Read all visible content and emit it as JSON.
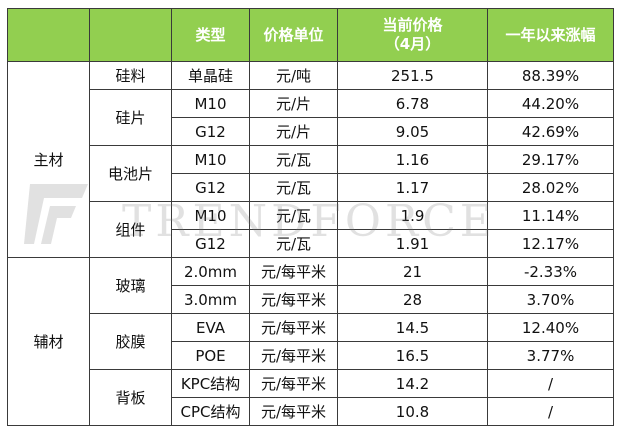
{
  "header": {
    "col_type": "类型",
    "col_unit": "价格单位",
    "col_price_line1": "当前价格",
    "col_price_line2": "（4月）",
    "col_change": "一年以来涨幅"
  },
  "groups": [
    {
      "name": "主材",
      "subgroups": [
        {
          "name": "硅料",
          "rows": [
            {
              "type": "单晶硅",
              "unit": "元/吨",
              "price": "251.5",
              "change": "88.39%"
            }
          ]
        },
        {
          "name": "硅片",
          "rows": [
            {
              "type": "M10",
              "unit": "元/片",
              "price": "6.78",
              "change": "44.20%"
            },
            {
              "type": "G12",
              "unit": "元/片",
              "price": "9.05",
              "change": "42.69%"
            }
          ]
        },
        {
          "name": "电池片",
          "rows": [
            {
              "type": "M10",
              "unit": "元/瓦",
              "price": "1.16",
              "change": "29.17%"
            },
            {
              "type": "G12",
              "unit": "元/瓦",
              "price": "1.17",
              "change": "28.02%"
            }
          ]
        },
        {
          "name": "组件",
          "rows": [
            {
              "type": "M10",
              "unit": "元/瓦",
              "price": "1.9",
              "change": "11.14%"
            },
            {
              "type": "G12",
              "unit": "元/瓦",
              "price": "1.91",
              "change": "12.17%"
            }
          ]
        }
      ]
    },
    {
      "name": "辅材",
      "subgroups": [
        {
          "name": "玻璃",
          "rows": [
            {
              "type": "2.0mm",
              "unit": "元/每平米",
              "price": "21",
              "change": "-2.33%"
            },
            {
              "type": "3.0mm",
              "unit": "元/每平米",
              "price": "28",
              "change": "3.70%"
            }
          ]
        },
        {
          "name": "胶膜",
          "rows": [
            {
              "type": "EVA",
              "unit": "元/每平米",
              "price": "14.5",
              "change": "12.40%"
            },
            {
              "type": "POE",
              "unit": "元/每平米",
              "price": "16.5",
              "change": "3.77%"
            }
          ]
        },
        {
          "name": "背板",
          "rows": [
            {
              "type": "KPC结构",
              "unit": "元/每平米",
              "price": "14.2",
              "change": "/"
            },
            {
              "type": "CPC结构",
              "unit": "元/每平米",
              "price": "10.8",
              "change": "/"
            }
          ]
        }
      ]
    }
  ],
  "watermark": {
    "text": "TRENDFORCE",
    "icon": "trendforce-logo-icon"
  },
  "colors": {
    "header_bg": "#92cf50",
    "header_text": "#ffffff",
    "border": "#3a3a3a"
  }
}
